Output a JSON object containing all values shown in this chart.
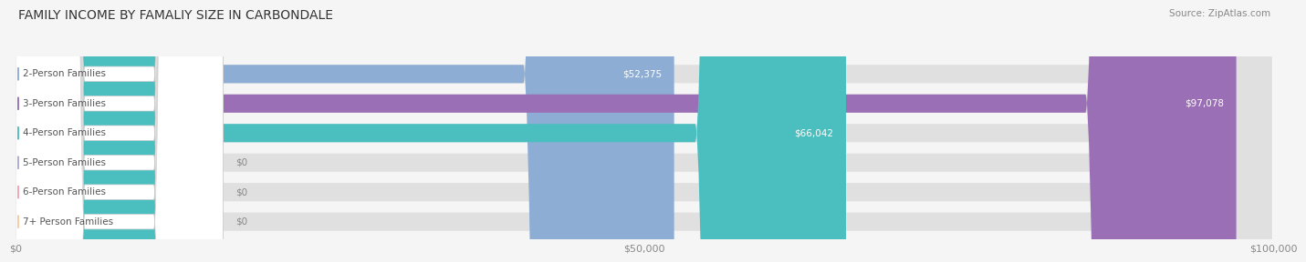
{
  "title": "FAMILY INCOME BY FAMALIY SIZE IN CARBONDALE",
  "source": "Source: ZipAtlas.com",
  "categories": [
    "2-Person Families",
    "3-Person Families",
    "4-Person Families",
    "5-Person Families",
    "6-Person Families",
    "7+ Person Families"
  ],
  "values": [
    52375,
    97078,
    66042,
    0,
    0,
    0
  ],
  "bar_colors": [
    "#8eadd4",
    "#9b6fb5",
    "#4bbfbf",
    "#a9a8d8",
    "#f4a0b0",
    "#f5c99a"
  ],
  "value_labels": [
    "$52,375",
    "$97,078",
    "$66,042",
    "$0",
    "$0",
    "$0"
  ],
  "xlim": [
    0,
    100000
  ],
  "xticks": [
    0,
    50000,
    100000
  ],
  "xticklabels": [
    "$0",
    "$50,000",
    "$100,000"
  ],
  "background_color": "#f5f5f5",
  "title_fontsize": 10,
  "source_fontsize": 7.5,
  "label_fontsize": 7.5,
  "value_fontsize": 7.5,
  "bar_height": 0.62
}
